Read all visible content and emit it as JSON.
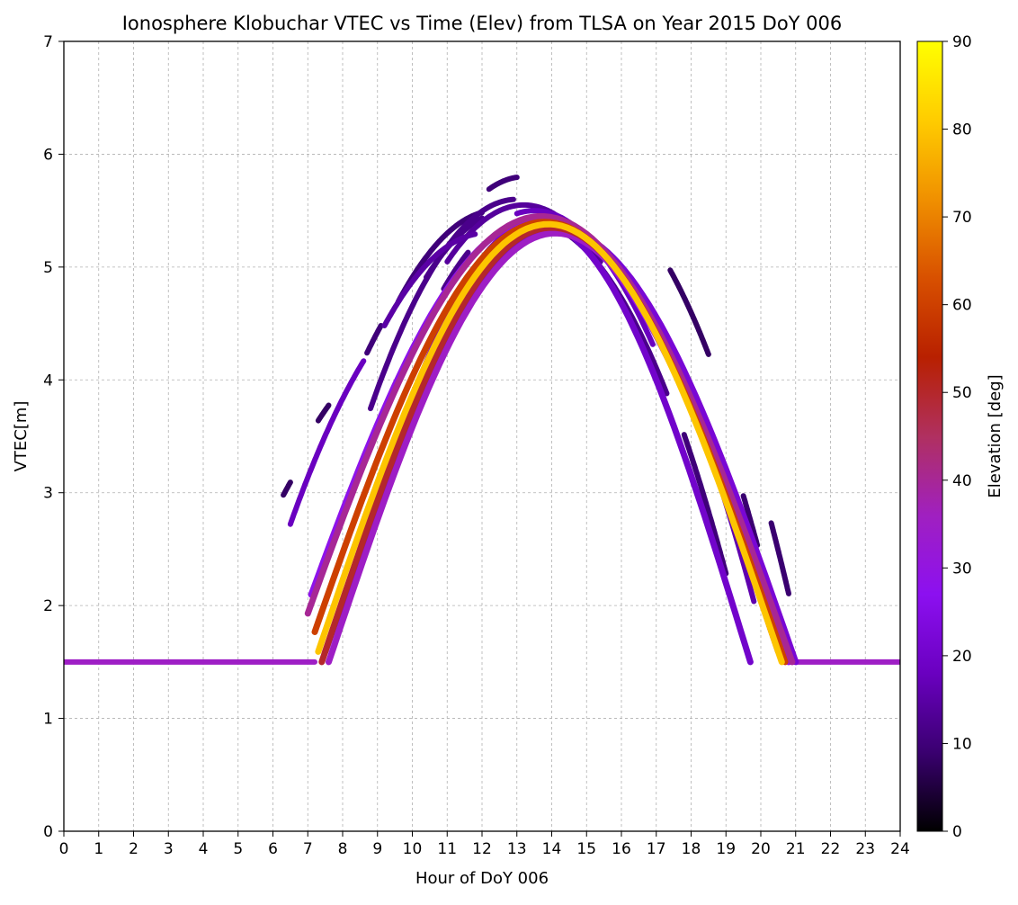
{
  "chart_data": {
    "type": "scatter",
    "title": "Ionosphere Klobuchar VTEC vs Time (Elev) from TLSA on Year 2015 DoY 006",
    "xlabel": "Hour of DoY 006",
    "ylabel": "VTEC[m]",
    "xlim": [
      0,
      24
    ],
    "ylim": [
      0,
      7
    ],
    "xticks": [
      "0",
      "1",
      "2",
      "3",
      "4",
      "5",
      "6",
      "7",
      "8",
      "9",
      "10",
      "11",
      "12",
      "13",
      "14",
      "15",
      "16",
      "17",
      "18",
      "19",
      "20",
      "21",
      "22",
      "23",
      "24"
    ],
    "yticks": [
      "0",
      "1",
      "2",
      "3",
      "4",
      "5",
      "6",
      "7"
    ],
    "grid": true,
    "colorbar": {
      "label": "Elevation [deg]",
      "range": [
        0,
        90
      ],
      "ticks": [
        "0",
        "10",
        "20",
        "30",
        "40",
        "50",
        "60",
        "70",
        "80",
        "90"
      ],
      "colormap": "gnuplot",
      "stops": [
        "#000000",
        "#3a0070",
        "#6a00c0",
        "#8c10f0",
        "#a020c0",
        "#b03060",
        "#b82000",
        "#d85000",
        "#f09000",
        "#ffcc00",
        "#ffff00"
      ]
    },
    "series": [
      {
        "type": "floor",
        "x": [
          0,
          7.2
        ],
        "y": 1.5,
        "elev": 35
      },
      {
        "type": "floor",
        "x": [
          20.8,
          24
        ],
        "y": 1.5,
        "elev": 35
      },
      {
        "type": "arc",
        "x": [
          7.3,
          20.6
        ],
        "peak_x": 13.9,
        "peak_y": 5.38,
        "elev": 80
      },
      {
        "type": "arc",
        "x": [
          7.2,
          20.7
        ],
        "peak_x": 13.8,
        "peak_y": 5.4,
        "elev": 60
      },
      {
        "type": "arc",
        "x": [
          7.4,
          20.5
        ],
        "peak_x": 14.0,
        "peak_y": 5.35,
        "elev": 50
      },
      {
        "type": "arc",
        "x": [
          7.0,
          20.9
        ],
        "peak_x": 13.7,
        "peak_y": 5.45,
        "elev": 40
      },
      {
        "type": "arc",
        "x": [
          7.6,
          20.3
        ],
        "peak_x": 14.1,
        "peak_y": 5.3,
        "elev": 35
      },
      {
        "type": "arc",
        "x": [
          7.1,
          20.8
        ],
        "peak_x": 13.6,
        "peak_y": 5.42,
        "elev": 28
      },
      {
        "type": "arc",
        "x": [
          8.0,
          19.7
        ],
        "peak_x": 13.6,
        "peak_y": 5.4,
        "elev": 20
      },
      {
        "type": "arc",
        "x": [
          7.5,
          21.0
        ],
        "peak_x": 14.2,
        "peak_y": 5.33,
        "elev": 22
      },
      {
        "type": "track",
        "x": [
          8.8,
          12.9
        ],
        "peak_x": 13.0,
        "peak_y": 5.6,
        "elev": 12
      },
      {
        "type": "track",
        "x": [
          11.0,
          15.4
        ],
        "peak_x": 13.2,
        "peak_y": 5.55,
        "elev": 14
      },
      {
        "type": "track",
        "x": [
          9.6,
          12.0
        ],
        "peak_x": 12.4,
        "peak_y": 5.5,
        "elev": 10
      },
      {
        "type": "track",
        "x": [
          13.0,
          16.9
        ],
        "peak_x": 13.5,
        "peak_y": 5.5,
        "elev": 18
      },
      {
        "type": "track",
        "x": [
          6.5,
          8.6
        ],
        "peak_x": 11.5,
        "peak_y": 4.9,
        "elev": 18
      },
      {
        "type": "track",
        "x": [
          16.5,
          19.8
        ],
        "peak_x": 14.0,
        "peak_y": 5.4,
        "elev": 16
      },
      {
        "type": "track",
        "x": [
          14.2,
          17.3
        ],
        "peak_x": 13.4,
        "peak_y": 5.4,
        "elev": 12
      },
      {
        "type": "track",
        "x": [
          9.2,
          11.8
        ],
        "peak_x": 12.1,
        "peak_y": 5.3,
        "elev": 15
      },
      {
        "type": "track",
        "x": [
          6.3,
          6.5
        ],
        "peak_x": 10.5,
        "peak_y": 4.2,
        "elev": 8
      },
      {
        "type": "track",
        "x": [
          7.3,
          7.6
        ],
        "peak_x": 10.5,
        "peak_y": 4.4,
        "elev": 8
      },
      {
        "type": "track",
        "x": [
          8.7,
          9.1
        ],
        "peak_x": 12.0,
        "peak_y": 5.3,
        "elev": 10
      },
      {
        "type": "track",
        "x": [
          10.4,
          12.0
        ],
        "peak_x": 12.8,
        "peak_y": 5.5,
        "elev": 12
      },
      {
        "type": "track",
        "x": [
          12.2,
          13.0
        ],
        "peak_x": 13.2,
        "peak_y": 5.8,
        "elev": 10
      },
      {
        "type": "track",
        "x": [
          14.3,
          15.3
        ],
        "peak_x": 13.4,
        "peak_y": 5.5,
        "elev": 9
      },
      {
        "type": "track",
        "x": [
          17.8,
          19.0
        ],
        "peak_x": 13.4,
        "peak_y": 5.5,
        "elev": 10
      },
      {
        "type": "track",
        "x": [
          19.5,
          19.9
        ],
        "peak_x": 14.5,
        "peak_y": 5.6,
        "elev": 9
      },
      {
        "type": "track",
        "x": [
          20.3,
          20.8
        ],
        "peak_x": 15.0,
        "peak_y": 5.9,
        "elev": 9
      },
      {
        "type": "track",
        "x": [
          17.4,
          18.5
        ],
        "peak_x": 14.8,
        "peak_y": 5.7,
        "elev": 8
      },
      {
        "type": "track",
        "x": [
          10.9,
          11.6
        ],
        "peak_x": 13.5,
        "peak_y": 5.5,
        "elev": 12
      }
    ]
  }
}
